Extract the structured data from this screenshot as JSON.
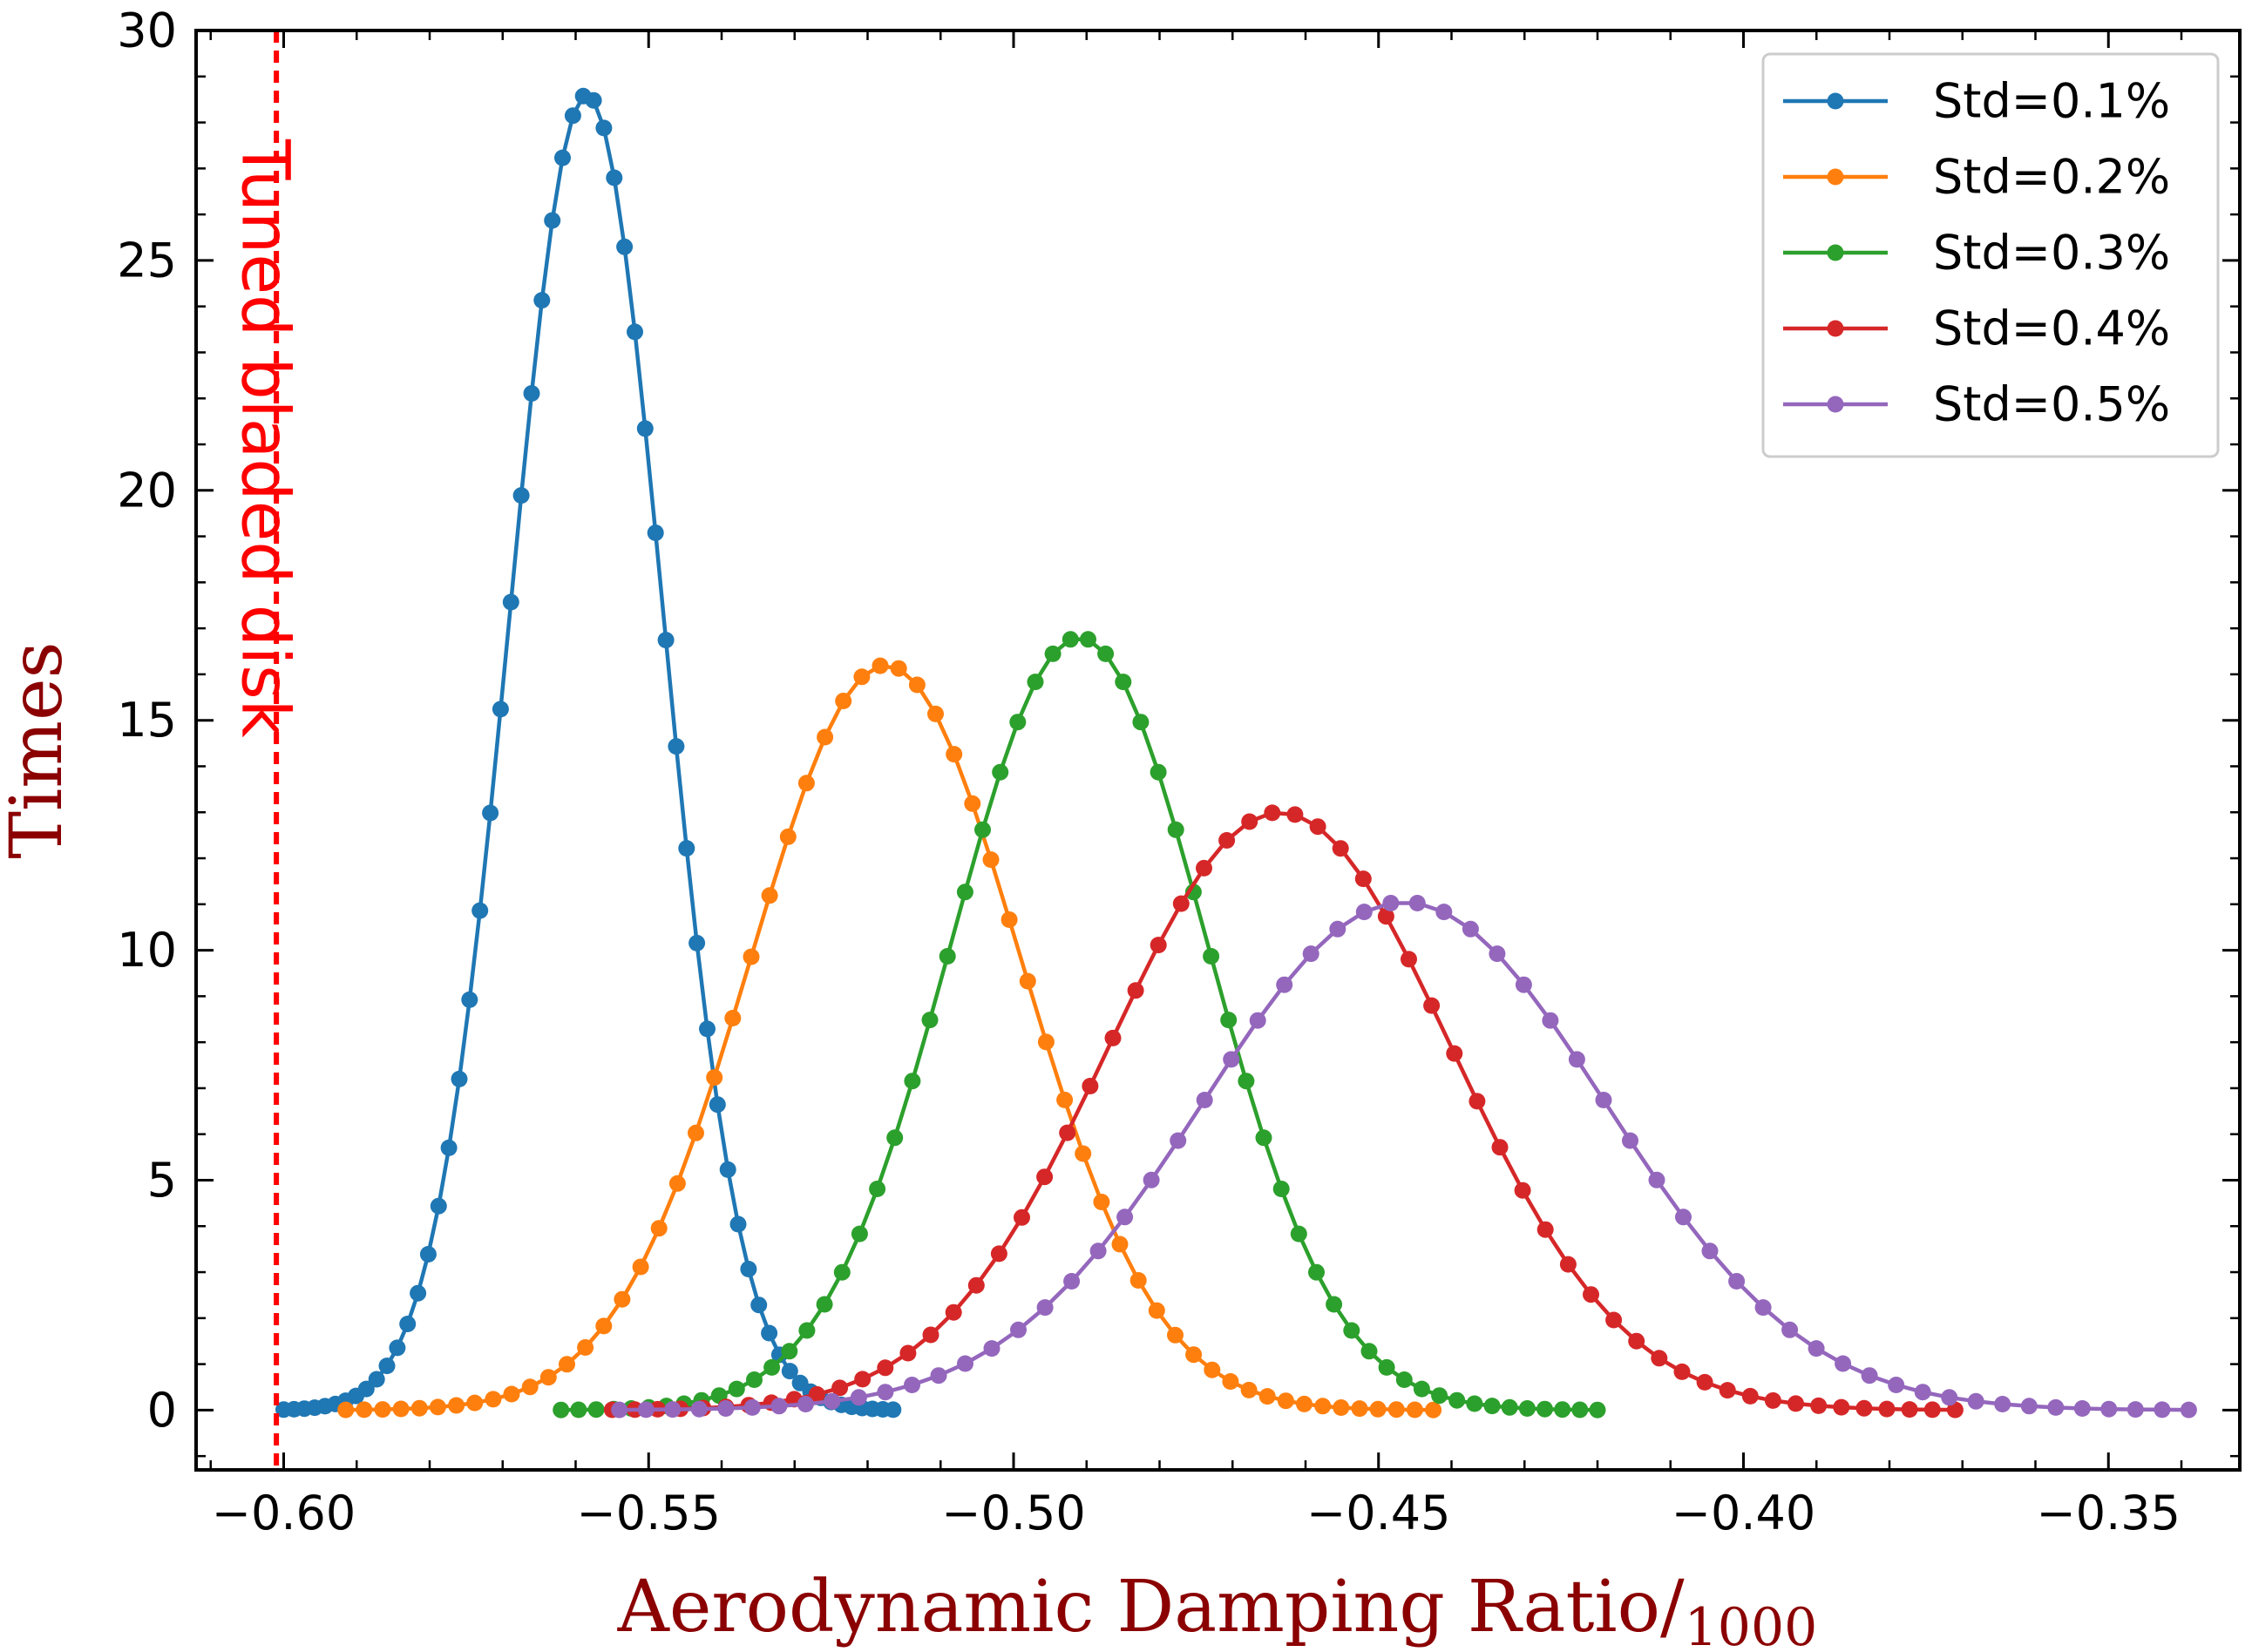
{
  "chart_data": {
    "type": "line",
    "title": "",
    "xlabel": "Aerodynamic Damping Ratio/",
    "xlabel_subscript": "1000",
    "ylabel": "Times",
    "xlim": [
      -0.612,
      -0.332
    ],
    "ylim": [
      -1.3,
      30
    ],
    "xticks": [
      -0.6,
      -0.55,
      -0.5,
      -0.45,
      -0.4,
      -0.35
    ],
    "xtick_labels": [
      "−0.60",
      "−0.55",
      "−0.50",
      "−0.45",
      "−0.40",
      "−0.35"
    ],
    "yticks": [
      0,
      5,
      10,
      15,
      20,
      25,
      30
    ],
    "ytick_labels": [
      "0",
      "5",
      "10",
      "15",
      "20",
      "25",
      "30"
    ],
    "legend_position": "top-right",
    "annotation": {
      "text": "Tuned bladed disk",
      "x": -0.601,
      "color": "#ff0000"
    },
    "series": [
      {
        "name": "Std=0.1%",
        "color": "#1f77b4",
        "mean": -0.5585,
        "sigma": 0.0105,
        "peak": 28.6,
        "x_start": -0.6,
        "x_end": -0.5165,
        "n_points": 60
      },
      {
        "name": "Std=0.2%",
        "color": "#ff7f0e",
        "mean": -0.5175,
        "sigma": 0.0185,
        "peak": 16.2,
        "x_start": -0.5915,
        "x_end": -0.4425,
        "n_points": 60
      },
      {
        "name": "Std=0.3%",
        "color": "#2ca02c",
        "mean": -0.491,
        "sigma": 0.0175,
        "peak": 16.8,
        "x_start": -0.562,
        "x_end": -0.42,
        "n_points": 60
      },
      {
        "name": "Std=0.4%",
        "color": "#d62728",
        "mean": -0.4635,
        "sigma": 0.0235,
        "peak": 13.0,
        "x_start": -0.555,
        "x_end": -0.371,
        "n_points": 60
      },
      {
        "name": "Std=0.5%",
        "color": "#9467bd",
        "mean": -0.4465,
        "sigma": 0.0275,
        "peak": 11.05,
        "x_start": -0.554,
        "x_end": -0.339,
        "n_points": 60
      }
    ]
  }
}
